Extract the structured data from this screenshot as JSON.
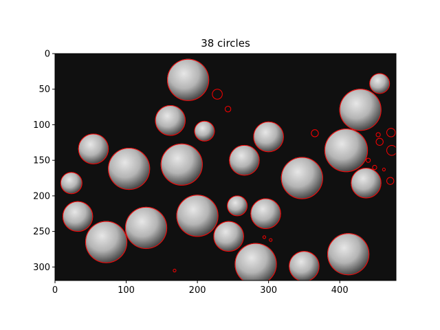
{
  "chart_data": {
    "type": "scatter",
    "title": "38 circles",
    "xlabel": "",
    "ylabel": "",
    "xlim": [
      0,
      479
    ],
    "ylim": [
      319,
      0
    ],
    "grid": false,
    "x_ticks": [
      0,
      100,
      200,
      300,
      400
    ],
    "y_ticks": [
      0,
      50,
      100,
      150,
      200,
      250,
      300
    ],
    "marker_color": "#ff0000",
    "background_image": "grayscale photo of clustered round fungal fruiting bodies (puffball-like), dark background",
    "circles": [
      {
        "x": 187,
        "y": 37,
        "r": 29
      },
      {
        "x": 228,
        "y": 57,
        "r": 7
      },
      {
        "x": 456,
        "y": 42,
        "r": 14
      },
      {
        "x": 243,
        "y": 78,
        "r": 4
      },
      {
        "x": 429,
        "y": 79,
        "r": 29
      },
      {
        "x": 162,
        "y": 94,
        "r": 21
      },
      {
        "x": 210,
        "y": 109,
        "r": 14
      },
      {
        "x": 300,
        "y": 117,
        "r": 21
      },
      {
        "x": 365,
        "y": 112,
        "r": 5
      },
      {
        "x": 472,
        "y": 111,
        "r": 6
      },
      {
        "x": 454,
        "y": 114,
        "r": 3
      },
      {
        "x": 456,
        "y": 124,
        "r": 5
      },
      {
        "x": 54,
        "y": 134,
        "r": 21
      },
      {
        "x": 409,
        "y": 136,
        "r": 30
      },
      {
        "x": 473,
        "y": 136,
        "r": 7
      },
      {
        "x": 266,
        "y": 150,
        "r": 21
      },
      {
        "x": 178,
        "y": 156,
        "r": 29
      },
      {
        "x": 440,
        "y": 150,
        "r": 3
      },
      {
        "x": 104,
        "y": 162,
        "r": 29
      },
      {
        "x": 449,
        "y": 160,
        "r": 3
      },
      {
        "x": 462,
        "y": 163,
        "r": 2
      },
      {
        "x": 23,
        "y": 182,
        "r": 15
      },
      {
        "x": 347,
        "y": 175,
        "r": 29
      },
      {
        "x": 437,
        "y": 182,
        "r": 21
      },
      {
        "x": 471,
        "y": 179,
        "r": 5
      },
      {
        "x": 256,
        "y": 214,
        "r": 14
      },
      {
        "x": 200,
        "y": 228,
        "r": 29
      },
      {
        "x": 296,
        "y": 225,
        "r": 21
      },
      {
        "x": 32,
        "y": 229,
        "r": 21
      },
      {
        "x": 128,
        "y": 245,
        "r": 29
      },
      {
        "x": 244,
        "y": 257,
        "r": 21
      },
      {
        "x": 72,
        "y": 265,
        "r": 29
      },
      {
        "x": 294,
        "y": 258,
        "r": 2
      },
      {
        "x": 303,
        "y": 262,
        "r": 2
      },
      {
        "x": 412,
        "y": 282,
        "r": 29
      },
      {
        "x": 282,
        "y": 296,
        "r": 29
      },
      {
        "x": 350,
        "y": 299,
        "r": 21
      },
      {
        "x": 168,
        "y": 305,
        "r": 2
      }
    ]
  }
}
